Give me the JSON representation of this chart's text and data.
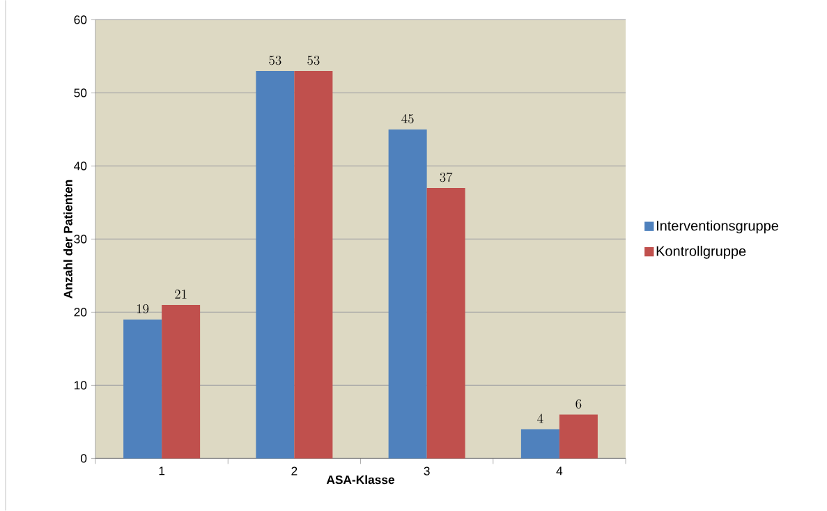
{
  "chart_data": {
    "type": "bar",
    "xlabel": "ASA-Klasse",
    "ylabel": "Anzahl der  Patienten",
    "categories": [
      "1",
      "2",
      "3",
      "4"
    ],
    "series": [
      {
        "name": "Interventionsgruppe",
        "color": "#4f81bd",
        "values": [
          19,
          53,
          45,
          4
        ]
      },
      {
        "name": "Kontrollgruppe",
        "color": "#c0504d",
        "values": [
          21,
          53,
          37,
          6
        ]
      }
    ],
    "ylim": [
      0,
      60
    ],
    "yticks": [
      0,
      10,
      20,
      30,
      40,
      50,
      60
    ],
    "grid": "y",
    "legend": "right",
    "data_labels": true
  }
}
